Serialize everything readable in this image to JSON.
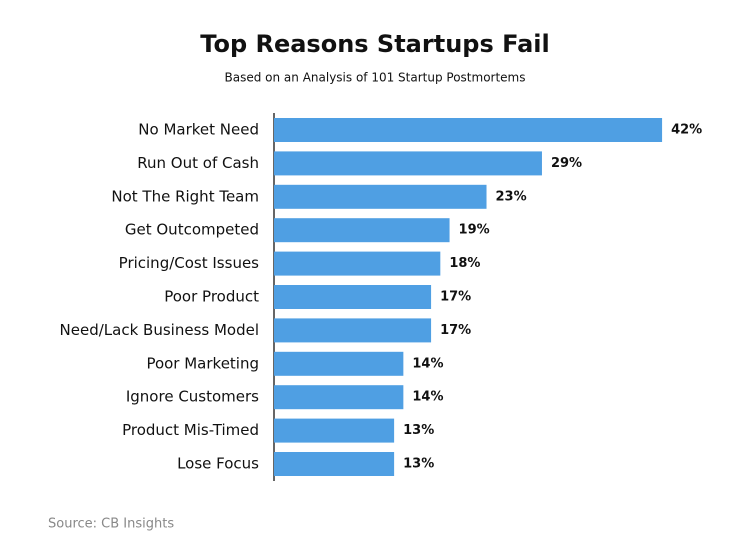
{
  "chart_data": {
    "type": "bar",
    "orientation": "horizontal",
    "title": "Top Reasons Startups Fail",
    "subtitle": "Based on an Analysis of 101 Startup Postmortems",
    "source": "Source: CB Insights",
    "categories": [
      "No Market Need",
      "Run Out of Cash",
      "Not The Right Team",
      "Get Outcompeted",
      "Pricing/Cost Issues",
      "Poor Product",
      "Need/Lack Business Model",
      "Poor Marketing",
      "Ignore Customers",
      "Product Mis-Timed",
      "Lose Focus"
    ],
    "values": [
      42,
      29,
      23,
      19,
      18,
      17,
      17,
      14,
      14,
      13,
      13
    ],
    "value_labels": [
      "42%",
      "29%",
      "23%",
      "19%",
      "18%",
      "17%",
      "17%",
      "14%",
      "14%",
      "13%",
      "13%"
    ],
    "color": "#4f9fe3"
  }
}
